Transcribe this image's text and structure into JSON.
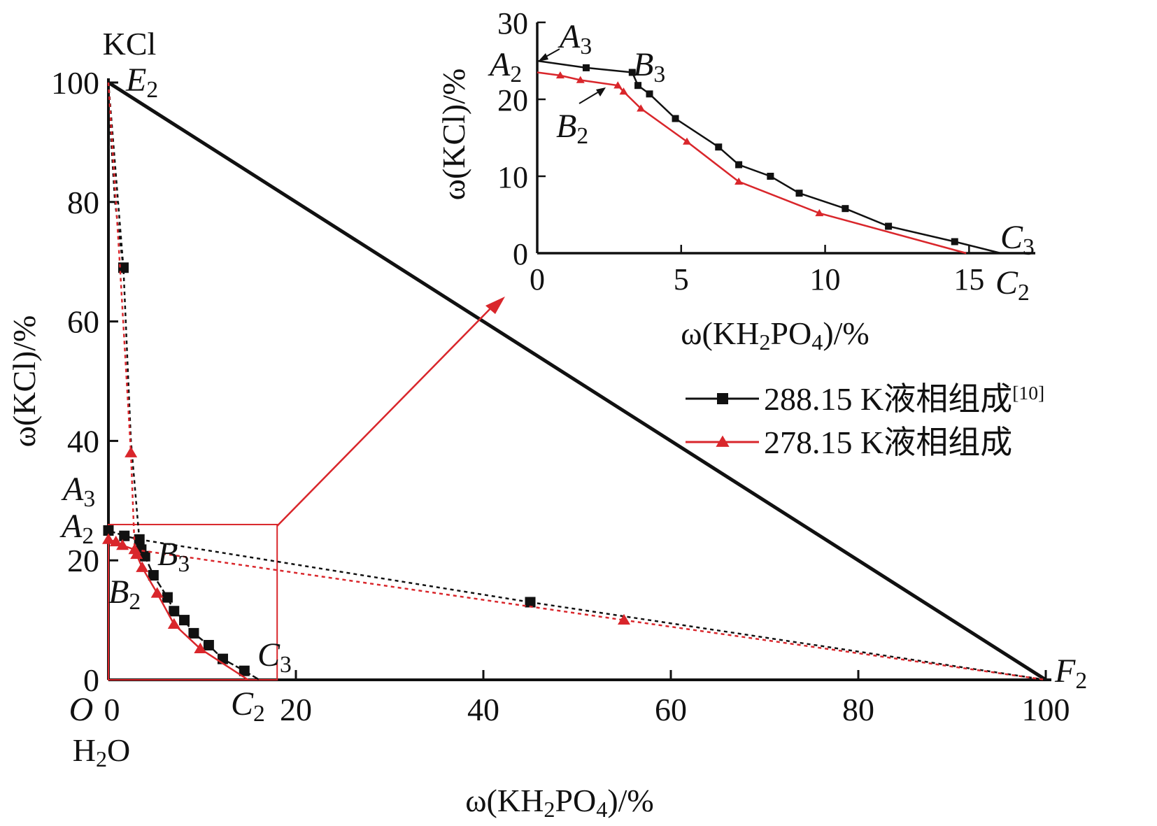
{
  "chart_data": [
    {
      "type": "scatter",
      "ternary_plot": true,
      "xlabel": "ω(KH2PO4)/%",
      "ylabel": "ω(KCl)/%",
      "xlim": [
        0,
        100
      ],
      "ylim": [
        0,
        100
      ],
      "x_ticks": [
        "0",
        "20",
        "40",
        "60",
        "80",
        "100"
      ],
      "y_ticks": [
        "0",
        "20",
        "40",
        "60",
        "80",
        "100"
      ],
      "x_tick_values": [
        0,
        20,
        40,
        60,
        80,
        100
      ],
      "y_tick_values": [
        0,
        20,
        40,
        60,
        80,
        100
      ],
      "grid": false,
      "legend_position": "right",
      "vertex_labels": {
        "top": "KCl",
        "origin_letter": "O",
        "origin_name": "H2O"
      },
      "point_labels": [
        {
          "text": "E2",
          "x": 0,
          "y": 100
        },
        {
          "text": "F2",
          "x": 100,
          "y": 0
        },
        {
          "text": "A3",
          "x": 0,
          "y": 25
        },
        {
          "text": "A2",
          "x": 0,
          "y": 23.5
        },
        {
          "text": "B3",
          "x": 3.3,
          "y": 23.5
        },
        {
          "text": "B2",
          "x": 2.8,
          "y": 21.8
        },
        {
          "text": "C3",
          "x": 16.1,
          "y": 0
        },
        {
          "text": "C2",
          "x": 14.9,
          "y": 0
        }
      ],
      "series": [
        {
          "name": "288.15 K液相组成",
          "legend_ref": "[10]",
          "color": "#111111",
          "marker": "square",
          "solubility_curve": [
            {
              "x": 0,
              "y": 25.0
            },
            {
              "x": 1.7,
              "y": 24.1
            },
            {
              "x": 3.3,
              "y": 23.5
            },
            {
              "x": 3.5,
              "y": 21.8
            },
            {
              "x": 3.9,
              "y": 20.7
            },
            {
              "x": 4.8,
              "y": 17.5
            },
            {
              "x": 6.3,
              "y": 13.8
            },
            {
              "x": 7.0,
              "y": 11.5
            },
            {
              "x": 8.1,
              "y": 10.0
            },
            {
              "x": 9.1,
              "y": 7.8
            },
            {
              "x": 10.7,
              "y": 5.8
            },
            {
              "x": 12.2,
              "y": 3.5
            },
            {
              "x": 14.5,
              "y": 1.5
            },
            {
              "x": 16.1,
              "y": 0
            }
          ],
          "kcl_branch": [
            {
              "x": 0,
              "y": 100
            },
            {
              "x": 0.3,
              "y": 90
            },
            {
              "x": 0.7,
              "y": 80
            },
            {
              "x": 1.6,
              "y": 69
            },
            {
              "x": 2.4,
              "y": 40
            },
            {
              "x": 3.3,
              "y": 23.5
            }
          ],
          "tie_lines": [
            {
              "from": {
                "x": 0,
                "y": 100
              },
              "to": {
                "x": 1.6,
                "y": 69
              }
            },
            {
              "from": {
                "x": 3.3,
                "y": 23.5
              },
              "to": {
                "x": 45,
                "y": 13
              }
            },
            {
              "from": {
                "x": 45,
                "y": 13
              },
              "to": {
                "x": 100,
                "y": 0
              }
            }
          ],
          "extra_points": [
            {
              "x": 1.6,
              "y": 69
            },
            {
              "x": 45,
              "y": 13
            }
          ]
        },
        {
          "name": "278.15 K液相组成",
          "color": "#d9262b",
          "marker": "triangle",
          "solubility_curve": [
            {
              "x": 0,
              "y": 23.5
            },
            {
              "x": 0.8,
              "y": 23.1
            },
            {
              "x": 1.5,
              "y": 22.5
            },
            {
              "x": 2.8,
              "y": 21.8
            },
            {
              "x": 3.0,
              "y": 21.0
            },
            {
              "x": 3.6,
              "y": 18.8
            },
            {
              "x": 5.2,
              "y": 14.5
            },
            {
              "x": 7.0,
              "y": 9.3
            },
            {
              "x": 9.8,
              "y": 5.2
            },
            {
              "x": 14.9,
              "y": 0
            }
          ],
          "kcl_branch": [
            {
              "x": 0,
              "y": 100
            },
            {
              "x": 0.2,
              "y": 95
            },
            {
              "x": 1.2,
              "y": 70
            },
            {
              "x": 2.4,
              "y": 38
            },
            {
              "x": 2.8,
              "y": 21.8
            }
          ],
          "tie_lines": [
            {
              "from": {
                "x": 2.8,
                "y": 21.8
              },
              "to": {
                "x": 55,
                "y": 10
              }
            },
            {
              "from": {
                "x": 55,
                "y": 10
              },
              "to": {
                "x": 100,
                "y": 0
              }
            }
          ],
          "extra_points": [
            {
              "x": 2.4,
              "y": 38
            },
            {
              "x": 55,
              "y": 10
            }
          ]
        }
      ],
      "zoom_box": {
        "x_range": [
          0,
          18
        ],
        "y_range": [
          0,
          26
        ],
        "color": "#d9262b"
      }
    },
    {
      "type": "line",
      "inset": true,
      "xlabel": "ω(KH2PO4)/%",
      "ylabel": "ω(KCl)/%",
      "xlim": [
        0,
        17.3
      ],
      "ylim": [
        0,
        30
      ],
      "x_ticks": [
        "0",
        "5",
        "10",
        "15"
      ],
      "y_ticks": [
        "0",
        "10",
        "20",
        "30"
      ],
      "x_tick_values": [
        0,
        5,
        10,
        15
      ],
      "y_tick_values": [
        0,
        10,
        20,
        30
      ],
      "grid": false,
      "point_labels": [
        {
          "text": "A3",
          "x": 0,
          "y": 25
        },
        {
          "text": "A2",
          "x": 0,
          "y": 23.5
        },
        {
          "text": "B3",
          "x": 3.3,
          "y": 23.5
        },
        {
          "text": "B2",
          "x": 2.8,
          "y": 21.8
        },
        {
          "text": "C3",
          "x": 16.1,
          "y": 0
        },
        {
          "text": "C2",
          "x": 14.9,
          "y": 0
        }
      ],
      "series": [
        {
          "name": "288.15 K液相组成",
          "color": "#111111",
          "marker": "square",
          "points": [
            {
              "x": 0,
              "y": 25.0
            },
            {
              "x": 1.7,
              "y": 24.1
            },
            {
              "x": 3.3,
              "y": 23.5
            },
            {
              "x": 3.5,
              "y": 21.8
            },
            {
              "x": 3.9,
              "y": 20.7
            },
            {
              "x": 4.8,
              "y": 17.5
            },
            {
              "x": 6.3,
              "y": 13.8
            },
            {
              "x": 7.0,
              "y": 11.5
            },
            {
              "x": 8.1,
              "y": 10.0
            },
            {
              "x": 9.1,
              "y": 7.8
            },
            {
              "x": 10.7,
              "y": 5.8
            },
            {
              "x": 12.2,
              "y": 3.5
            },
            {
              "x": 14.5,
              "y": 1.5
            },
            {
              "x": 16.1,
              "y": 0
            }
          ]
        },
        {
          "name": "278.15 K液相组成",
          "color": "#d9262b",
          "marker": "triangle",
          "points": [
            {
              "x": 0,
              "y": 23.5
            },
            {
              "x": 0.8,
              "y": 23.1
            },
            {
              "x": 1.5,
              "y": 22.5
            },
            {
              "x": 2.8,
              "y": 21.8
            },
            {
              "x": 3.0,
              "y": 21.0
            },
            {
              "x": 3.6,
              "y": 18.8
            },
            {
              "x": 5.2,
              "y": 14.5
            },
            {
              "x": 7.0,
              "y": 9.3
            },
            {
              "x": 9.8,
              "y": 5.2
            },
            {
              "x": 14.9,
              "y": 0
            }
          ]
        }
      ]
    }
  ]
}
